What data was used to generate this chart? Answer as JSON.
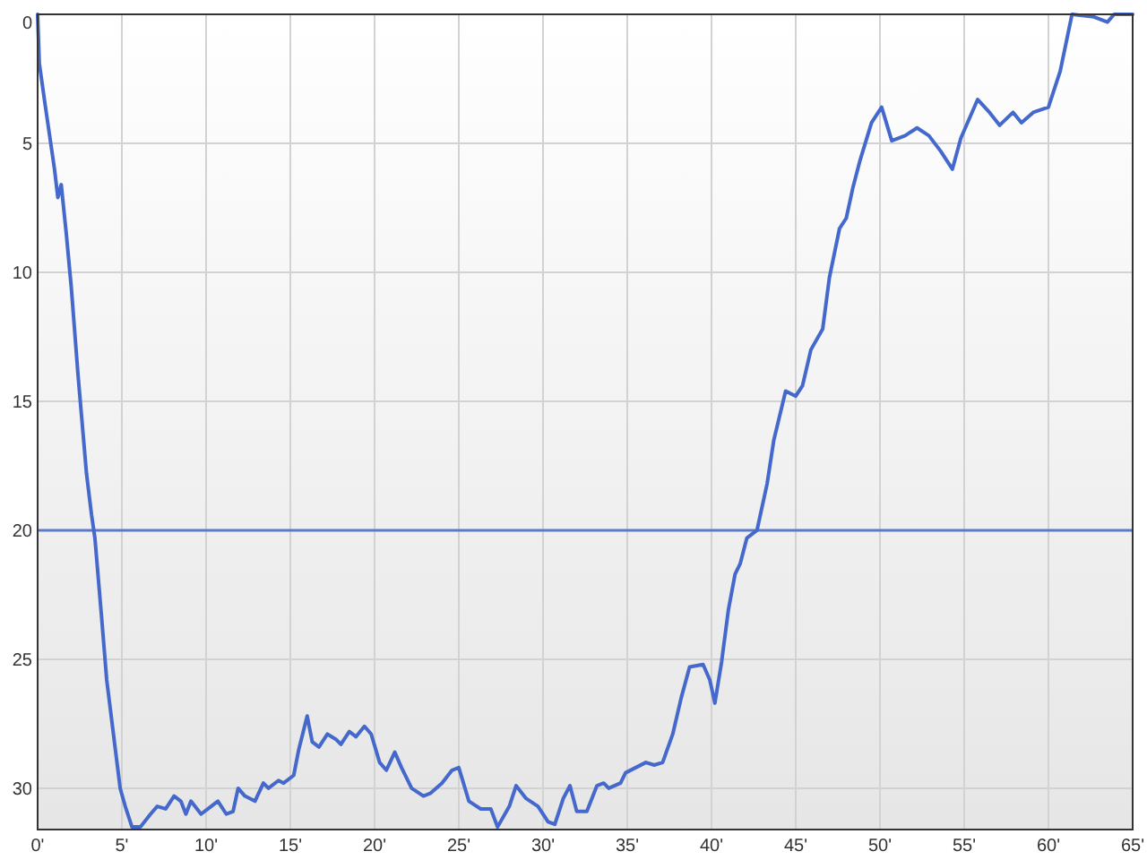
{
  "chart_data": {
    "type": "line",
    "xlim": [
      0,
      65
    ],
    "ylim": [
      31.6,
      0
    ],
    "xticks": [
      {
        "value": 0,
        "label": "0'"
      },
      {
        "value": 5,
        "label": "5'"
      },
      {
        "value": 10,
        "label": "10'"
      },
      {
        "value": 15,
        "label": "15'"
      },
      {
        "value": 20,
        "label": "20'"
      },
      {
        "value": 25,
        "label": "25'"
      },
      {
        "value": 30,
        "label": "30'"
      },
      {
        "value": 35,
        "label": "35'"
      },
      {
        "value": 40,
        "label": "40'"
      },
      {
        "value": 45,
        "label": "45'"
      },
      {
        "value": 50,
        "label": "50'"
      },
      {
        "value": 55,
        "label": "55'"
      },
      {
        "value": 60,
        "label": "60'"
      },
      {
        "value": 65,
        "label": "65'"
      }
    ],
    "yticks": [
      0,
      5,
      10,
      15,
      20,
      25,
      30
    ],
    "grid": true,
    "marker": "none",
    "line_style": "solid",
    "ref_lines": [
      {
        "axis": "y",
        "value": 20,
        "color": "#5a7bc8"
      }
    ],
    "x": [
      0,
      0.1,
      0.4,
      1.0,
      1.2,
      1.4,
      1.7,
      2.0,
      2.4,
      2.9,
      3.2,
      3.4,
      3.8,
      4.1,
      4.5,
      4.9,
      5.2,
      5.6,
      6.1,
      6.7,
      7.1,
      7.6,
      8.1,
      8.5,
      8.8,
      9.1,
      9.7,
      10.3,
      10.7,
      11.2,
      11.6,
      11.9,
      12.3,
      12.9,
      13.4,
      13.7,
      14.3,
      14.6,
      15.2,
      15.5,
      16.0,
      16.3,
      16.7,
      17.2,
      17.7,
      18.0,
      18.5,
      18.9,
      19.4,
      19.8,
      20.3,
      20.7,
      21.2,
      21.6,
      22.2,
      22.9,
      23.3,
      24.0,
      24.6,
      25.0,
      25.6,
      26.3,
      26.9,
      27.3,
      28.0,
      28.4,
      29.0,
      29.7,
      30.3,
      30.7,
      31.2,
      31.6,
      32.0,
      32.6,
      33.2,
      33.6,
      33.9,
      34.6,
      34.9,
      35.5,
      36.1,
      36.6,
      37.1,
      37.7,
      38.2,
      38.7,
      39.5,
      39.9,
      40.2,
      40.6,
      41.0,
      41.4,
      41.7,
      42.1,
      42.7,
      43.3,
      43.7,
      44.4,
      45.0,
      45.4,
      45.9,
      46.6,
      47.0,
      47.6,
      48.0,
      48.4,
      48.8,
      49.5,
      50.1,
      50.7,
      51.5,
      52.2,
      52.9,
      53.6,
      54.3,
      54.8,
      55.8,
      56.5,
      57.1,
      57.9,
      58.4,
      59.1,
      60.0,
      60.7,
      61.4,
      62.7,
      63.5,
      63.9,
      65
    ],
    "series": [
      {
        "color": "#4468cc",
        "values": [
          0,
          1.9,
          3.3,
          6.0,
          7.1,
          6.6,
          8.5,
          10.6,
          14.0,
          17.8,
          19.4,
          20.3,
          23.4,
          25.8,
          27.9,
          30.0,
          30.7,
          31.5,
          31.5,
          31.0,
          30.7,
          30.8,
          30.3,
          30.5,
          31.0,
          30.5,
          31.0,
          30.7,
          30.5,
          31.0,
          30.9,
          30.0,
          30.3,
          30.5,
          29.8,
          30.0,
          29.7,
          29.8,
          29.5,
          28.5,
          27.2,
          28.2,
          28.4,
          27.9,
          28.1,
          28.3,
          27.8,
          28.0,
          27.6,
          27.9,
          29.0,
          29.3,
          28.6,
          29.2,
          30.0,
          30.3,
          30.2,
          29.8,
          29.3,
          29.2,
          30.5,
          30.8,
          30.8,
          31.5,
          30.7,
          29.9,
          30.4,
          30.7,
          31.3,
          31.4,
          30.4,
          29.9,
          30.9,
          30.9,
          29.9,
          29.8,
          30.0,
          29.8,
          29.4,
          29.2,
          29.0,
          29.1,
          29.0,
          27.9,
          26.5,
          25.3,
          25.2,
          25.8,
          26.7,
          25.1,
          23.1,
          21.7,
          21.3,
          20.3,
          20.0,
          18.2,
          16.5,
          14.6,
          14.8,
          14.4,
          13.0,
          12.2,
          10.2,
          8.3,
          7.9,
          6.7,
          5.7,
          4.2,
          3.6,
          4.9,
          4.7,
          4.4,
          4.7,
          5.3,
          6.0,
          4.8,
          3.3,
          3.8,
          4.3,
          3.8,
          4.2,
          3.8,
          3.6,
          2.2,
          0,
          0.1,
          0.3,
          0,
          0
        ]
      }
    ]
  }
}
